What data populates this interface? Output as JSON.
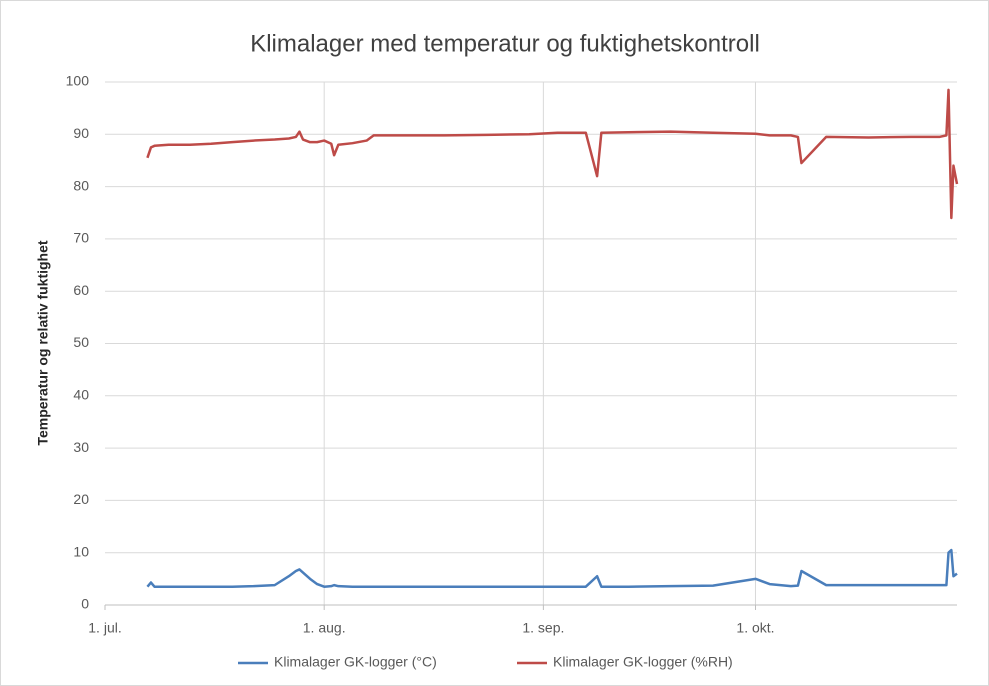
{
  "chart_data": {
    "type": "line",
    "title": "Klimalager med temperatur og fuktighetskontroll",
    "y_label": "Temperatur og relativ fuktighet",
    "x": [
      6,
      6.5,
      7,
      9,
      12,
      15,
      18,
      21,
      24,
      26,
      27,
      27.5,
      28,
      29,
      30,
      31,
      32,
      32.4,
      33,
      35,
      37,
      38,
      42,
      48,
      54,
      60,
      64,
      68,
      69.6,
      70.2,
      74,
      80,
      86,
      92,
      94,
      97,
      98,
      98.5,
      102,
      108,
      114,
      118,
      119,
      119.3,
      119.7,
      120,
      120.5
    ],
    "series": [
      {
        "name": "Klimalager GK-logger  (°C)",
        "color": "#4a7ebb",
        "values": [
          3.5,
          4.3,
          3.5,
          3.5,
          3.5,
          3.5,
          3.5,
          3.6,
          3.8,
          5.5,
          6.5,
          6.8,
          6.2,
          5,
          4,
          3.5,
          3.6,
          3.8,
          3.6,
          3.5,
          3.5,
          3.5,
          3.5,
          3.5,
          3.5,
          3.5,
          3.5,
          3.5,
          5.5,
          3.5,
          3.5,
          3.6,
          3.7,
          5,
          4,
          3.6,
          3.7,
          6.5,
          3.8,
          3.8,
          3.8,
          3.8,
          3.8,
          10,
          10.5,
          5.5,
          6
        ]
      },
      {
        "name": "Klimalager GK-logger (%RH)",
        "color": "#be4b48",
        "values": [
          85.5,
          87.5,
          87.8,
          88,
          88,
          88.2,
          88.5,
          88.8,
          89,
          89.2,
          89.5,
          90.5,
          89,
          88.5,
          88.5,
          88.8,
          88.2,
          86,
          88,
          88.3,
          88.8,
          89.8,
          89.8,
          89.8,
          89.9,
          90,
          90.3,
          90.3,
          82,
          90.3,
          90.4,
          90.5,
          90.3,
          90.1,
          89.8,
          89.8,
          89.5,
          84.5,
          89.5,
          89.4,
          89.5,
          89.5,
          89.8,
          98.5,
          74,
          84,
          80.5
        ]
      }
    ],
    "xlim": [
      0,
      120.5
    ],
    "xticks": [
      {
        "value": 0,
        "label": "1. jul."
      },
      {
        "value": 31,
        "label": "1. aug."
      },
      {
        "value": 62,
        "label": "1. sep."
      },
      {
        "value": 92,
        "label": "1. okt."
      }
    ],
    "ylim": [
      0,
      100
    ],
    "yticks": [
      0,
      10,
      20,
      30,
      40,
      50,
      60,
      70,
      80,
      90,
      100
    ],
    "grid": true,
    "legend": "bottom"
  }
}
